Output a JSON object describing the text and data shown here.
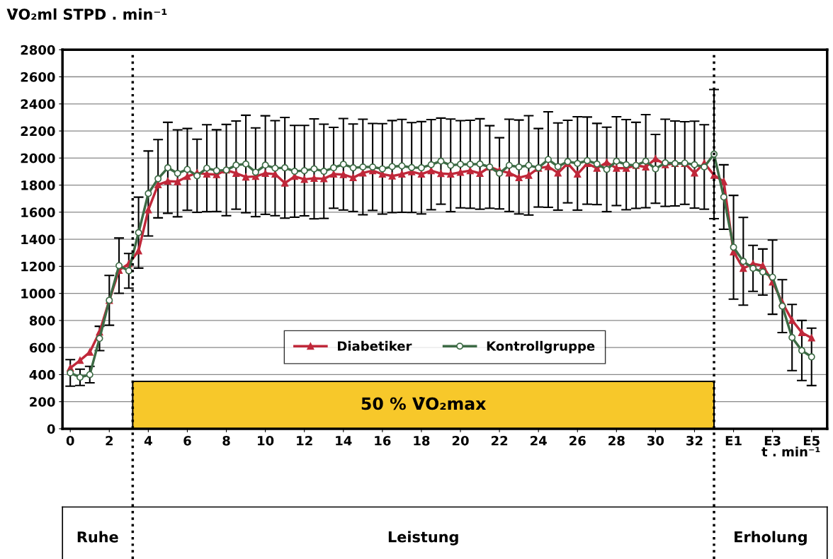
{
  "chart_data": {
    "type": "line",
    "ylabel": "V̇O₂ml STPD . min⁻¹",
    "xlabel": "t . min⁻¹",
    "x": [
      0,
      0.5,
      1,
      1.5,
      2,
      2.5,
      3,
      3.5,
      4,
      4.5,
      5,
      5.5,
      6,
      6.5,
      7,
      7.5,
      8,
      8.5,
      9,
      9.5,
      10,
      10.5,
      11,
      11.5,
      12,
      12.5,
      13,
      13.5,
      14,
      14.5,
      15,
      15.5,
      16,
      16.5,
      17,
      17.5,
      18,
      18.5,
      19,
      19.5,
      20,
      20.5,
      21,
      21.5,
      22,
      22.5,
      23,
      23.5,
      24,
      24.5,
      25,
      25.5,
      26,
      26.5,
      27,
      27.5,
      28,
      28.5,
      29,
      29.5,
      30,
      30.5,
      31,
      31.5,
      32,
      32.5,
      33,
      33.5,
      34,
      34.5,
      35,
      35.5,
      36,
      36.5,
      37,
      37.5,
      38
    ],
    "series": [
      {
        "name": "Diabetiker",
        "color": "#c0283a",
        "marker": "triangle",
        "values": [
          449,
          505,
          566,
          714,
          949,
          1171,
          1219,
          1315,
          1617,
          1803,
          1829,
          1826,
          1864,
          1890,
          1881,
          1878,
          1911,
          1887,
          1860,
          1864,
          1887,
          1881,
          1815,
          1864,
          1843,
          1850,
          1847,
          1881,
          1878,
          1855,
          1890,
          1907,
          1881,
          1867,
          1881,
          1899,
          1881,
          1907,
          1885,
          1881,
          1895,
          1907,
          1887,
          1934,
          1907,
          1890,
          1855,
          1873,
          1925,
          1937,
          1890,
          1960,
          1881,
          1960,
          1925,
          1968,
          1925,
          1925,
          1946,
          1934,
          1995,
          1951,
          1960,
          1960,
          1890,
          1963,
          1873,
          1826,
          1307,
          1185,
          1219,
          1205,
          1085,
          932,
          801,
          711,
          671
        ]
      },
      {
        "name": "Kontrollgruppe",
        "color": "#3d6b45",
        "marker": "circle",
        "values": [
          413,
          380,
          400,
          667,
          949,
          1205,
          1167,
          1449,
          1738,
          1847,
          1928,
          1887,
          1916,
          1869,
          1925,
          1907,
          1911,
          1948,
          1956,
          1895,
          1948,
          1925,
          1928,
          1902,
          1907,
          1920,
          1902,
          1928,
          1954,
          1928,
          1934,
          1934,
          1920,
          1937,
          1942,
          1930,
          1928,
          1951,
          1977,
          1946,
          1954,
          1954,
          1956,
          1934,
          1887,
          1946,
          1934,
          1946,
          1928,
          1989,
          1937,
          1974,
          1960,
          1981,
          1956,
          1916,
          1977,
          1951,
          1946,
          1977,
          1920,
          1965,
          1960,
          1963,
          1951,
          1934,
          2029,
          1712,
          1341,
          1237,
          1185,
          1158,
          1120,
          906,
          674,
          578,
          531
        ],
        "errors": [
          98,
          60,
          61,
          90,
          184,
          204,
          128,
          262,
          314,
          289,
          336,
          321,
          302,
          270,
          321,
          302,
          337,
          326,
          360,
          328,
          364,
          351,
          372,
          339,
          334,
          369,
          348,
          299,
          338,
          323,
          353,
          321,
          334,
          340,
          343,
          332,
          341,
          333,
          318,
          342,
          322,
          325,
          334,
          305,
          263,
          341,
          347,
          367,
          290,
          353,
          322,
          305,
          345,
          322,
          300,
          312,
          328,
          333,
          318,
          344,
          254,
          322,
          314,
          305,
          321,
          312,
          477,
          238,
          383,
          324,
          170,
          170,
          274,
          195,
          244,
          222,
          212
        ]
      }
    ],
    "xlim": [
      -0.4,
      38.8
    ],
    "xticks": [
      0,
      2,
      4,
      6,
      8,
      10,
      12,
      14,
      16,
      18,
      20,
      22,
      24,
      26,
      28,
      30,
      32,
      {
        "value": 34,
        "label": "E1"
      },
      {
        "value": 36,
        "label": "E3"
      },
      {
        "value": 38,
        "label": "E5"
      }
    ],
    "ylim": [
      0,
      2800
    ],
    "yticks": [
      0,
      200,
      400,
      600,
      800,
      1000,
      1200,
      1400,
      1600,
      1800,
      2000,
      2200,
      2400,
      2600,
      2800
    ],
    "grid": "y",
    "legend": "bottom",
    "line_style": "solid",
    "ref_lines": [
      {
        "axis": "x",
        "value": 3.2,
        "line_style": "dotted",
        "color": "#000000"
      },
      {
        "axis": "x",
        "value": 33,
        "line_style": "dotted",
        "color": "#000000"
      }
    ],
    "bands": [
      {
        "axis": "x",
        "from": 3.2,
        "to": 33,
        "label": "50 % V̇O₂max",
        "color": "#f7c82a"
      }
    ],
    "annotations": [
      "Ruhe",
      "Leistung",
      "Erholung"
    ]
  }
}
